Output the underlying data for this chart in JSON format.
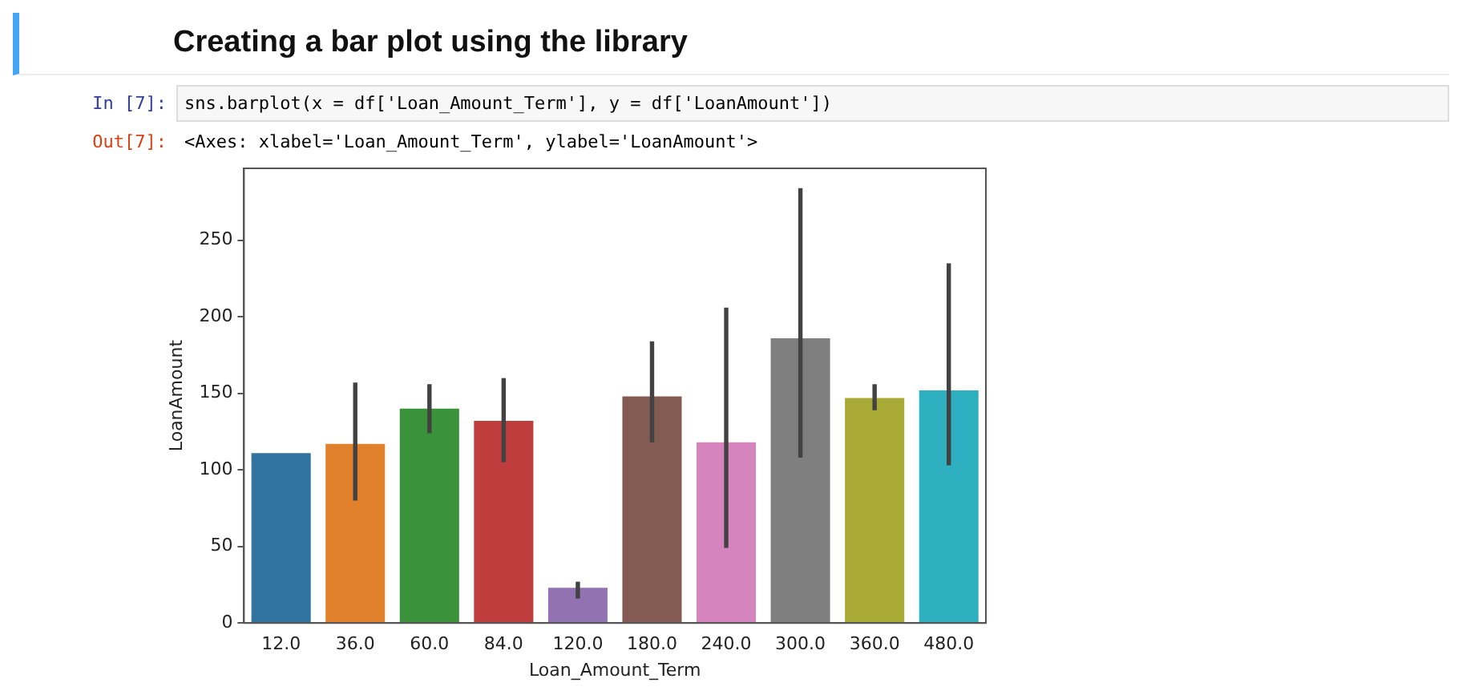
{
  "chart_data": {
    "type": "bar",
    "title": "Creating a bar plot using the library",
    "annotations": [
      "In [7]:",
      "sns.barplot(x = df['Loan_Amount_Term'], y = df['LoanAmount'])",
      "Out[7]:",
      "<Axes: xlabel='Loan_Amount_Term', ylabel='LoanAmount'>"
    ],
    "xlabel": "Loan_Amount_Term",
    "ylabel": "LoanAmount",
    "categories": [
      "12.0",
      "36.0",
      "60.0",
      "84.0",
      "120.0",
      "180.0",
      "240.0",
      "300.0",
      "360.0",
      "480.0"
    ],
    "values": [
      111,
      117,
      140,
      132,
      23,
      148,
      118,
      186,
      147,
      152
    ],
    "errors": [
      null,
      [
        80,
        157
      ],
      [
        124,
        156
      ],
      [
        105,
        160
      ],
      [
        16,
        27
      ],
      [
        118,
        184
      ],
      [
        49,
        206
      ],
      [
        108,
        284
      ],
      [
        139,
        156
      ],
      [
        103,
        235
      ]
    ],
    "colors": [
      "#3274a1",
      "#e1812c",
      "#3a923a",
      "#c03d3e",
      "#9372b2",
      "#845b53",
      "#d684bd",
      "#7f7f7f",
      "#a9aa35",
      "#2eb0c0"
    ],
    "ylim": [
      0,
      297
    ],
    "yticks": [
      0,
      50,
      100,
      150,
      200,
      250
    ],
    "grid": false,
    "legend": false
  }
}
